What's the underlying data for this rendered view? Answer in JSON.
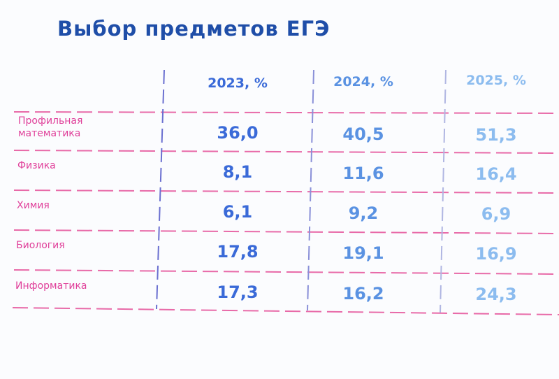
{
  "title": "Выбор предметов ЕГЭ",
  "table": {
    "header": [
      "2023, %",
      "2024, %",
      "2025, %"
    ],
    "rows": [
      {
        "label": "Профильная математика",
        "values": [
          "36,0",
          "40,5",
          "51,3"
        ]
      },
      {
        "label": "Физика",
        "values": [
          "8,1",
          "11,6",
          "16,4"
        ]
      },
      {
        "label": "Химия",
        "values": [
          "6,1",
          "9,2",
          "6,9"
        ]
      },
      {
        "label": "Биология",
        "values": [
          "17,8",
          "19,1",
          "16,9"
        ]
      },
      {
        "label": "Информатика",
        "values": [
          "17,3",
          "16,2",
          "24,3"
        ]
      }
    ]
  }
}
